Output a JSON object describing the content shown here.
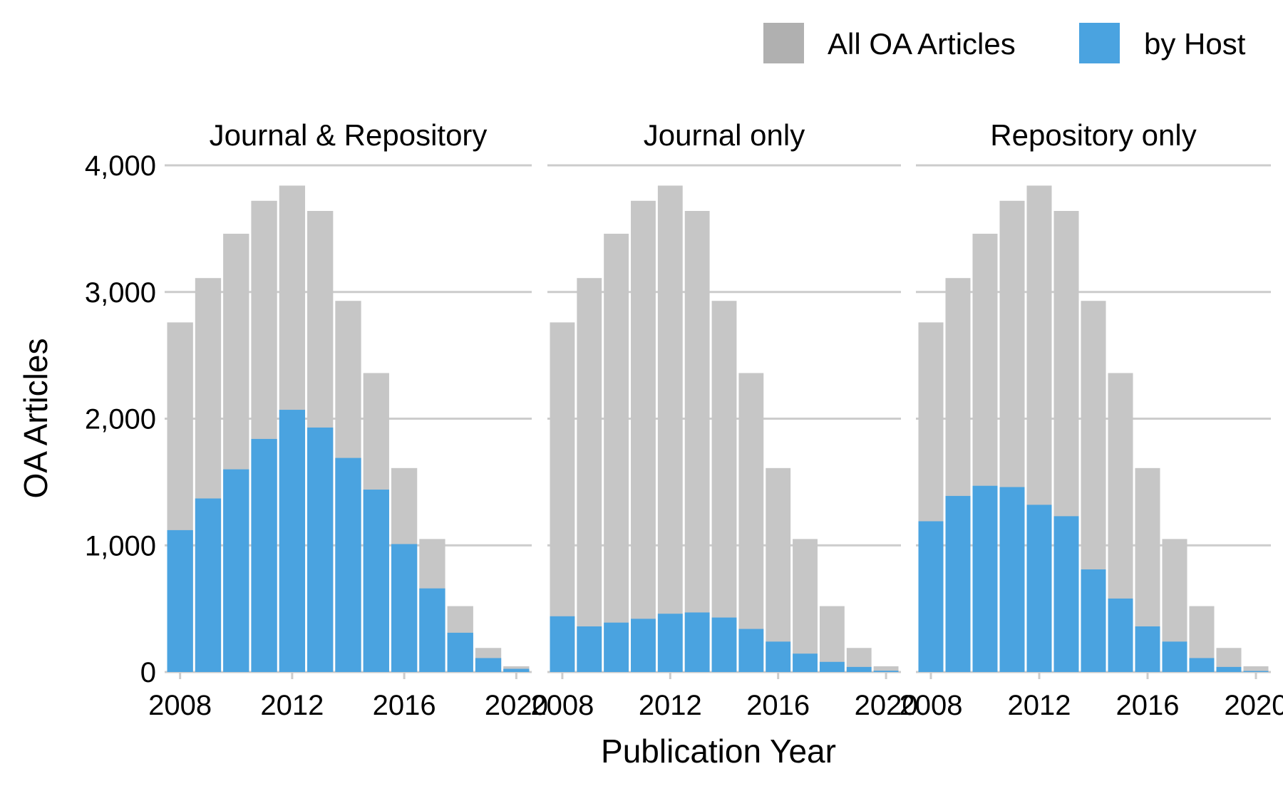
{
  "chart_data": {
    "type": "bar",
    "xlabel": "Publication Year",
    "ylabel": "OA Articles",
    "ylim": [
      0,
      4000
    ],
    "xlim": [
      2007.5,
      2020.5
    ],
    "yticks": [
      0,
      1000,
      2000,
      3000,
      4000
    ],
    "ytick_labels": [
      "0",
      "1,000",
      "2,000",
      "3,000",
      "4,000"
    ],
    "xticks": [
      2008,
      2012,
      2016,
      2020
    ],
    "xtick_labels": [
      "2008",
      "2012",
      "2016",
      "2020"
    ],
    "grid": "horizontal",
    "legend": {
      "position": "top-right",
      "entries": [
        {
          "label": "All OA Articles",
          "color": "#b0b0b0"
        },
        {
          "label": "by Host",
          "color": "#4aa3e0"
        }
      ]
    },
    "colors": {
      "all": "#c6c6c6",
      "host": "#4aa3e0",
      "grid": "#cccccc"
    },
    "years": [
      2008,
      2009,
      2010,
      2011,
      2012,
      2013,
      2014,
      2015,
      2016,
      2017,
      2018,
      2019,
      2020
    ],
    "facets": [
      {
        "title": "Journal & Repository",
        "series": [
          {
            "name": "All OA Articles",
            "values": [
              2760,
              3110,
              3460,
              3720,
              3840,
              3640,
              2930,
              2360,
              1610,
              1050,
              520,
              190,
              45
            ]
          },
          {
            "name": "by Host",
            "values": [
              1120,
              1370,
              1600,
              1840,
              2070,
              1930,
              1690,
              1440,
              1010,
              660,
              310,
              110,
              25
            ]
          }
        ]
      },
      {
        "title": "Journal only",
        "series": [
          {
            "name": "All OA Articles",
            "values": [
              2760,
              3110,
              3460,
              3720,
              3840,
              3640,
              2930,
              2360,
              1610,
              1050,
              520,
              190,
              45
            ]
          },
          {
            "name": "by Host",
            "values": [
              440,
              360,
              390,
              420,
              460,
              470,
              430,
              340,
              240,
              145,
              80,
              40,
              10
            ]
          }
        ]
      },
      {
        "title": "Repository only",
        "series": [
          {
            "name": "All OA Articles",
            "values": [
              2760,
              3110,
              3460,
              3720,
              3840,
              3640,
              2930,
              2360,
              1610,
              1050,
              520,
              190,
              45
            ]
          },
          {
            "name": "by Host",
            "values": [
              1190,
              1390,
              1470,
              1460,
              1320,
              1230,
              810,
              580,
              360,
              240,
              110,
              40,
              8
            ]
          }
        ]
      }
    ]
  }
}
